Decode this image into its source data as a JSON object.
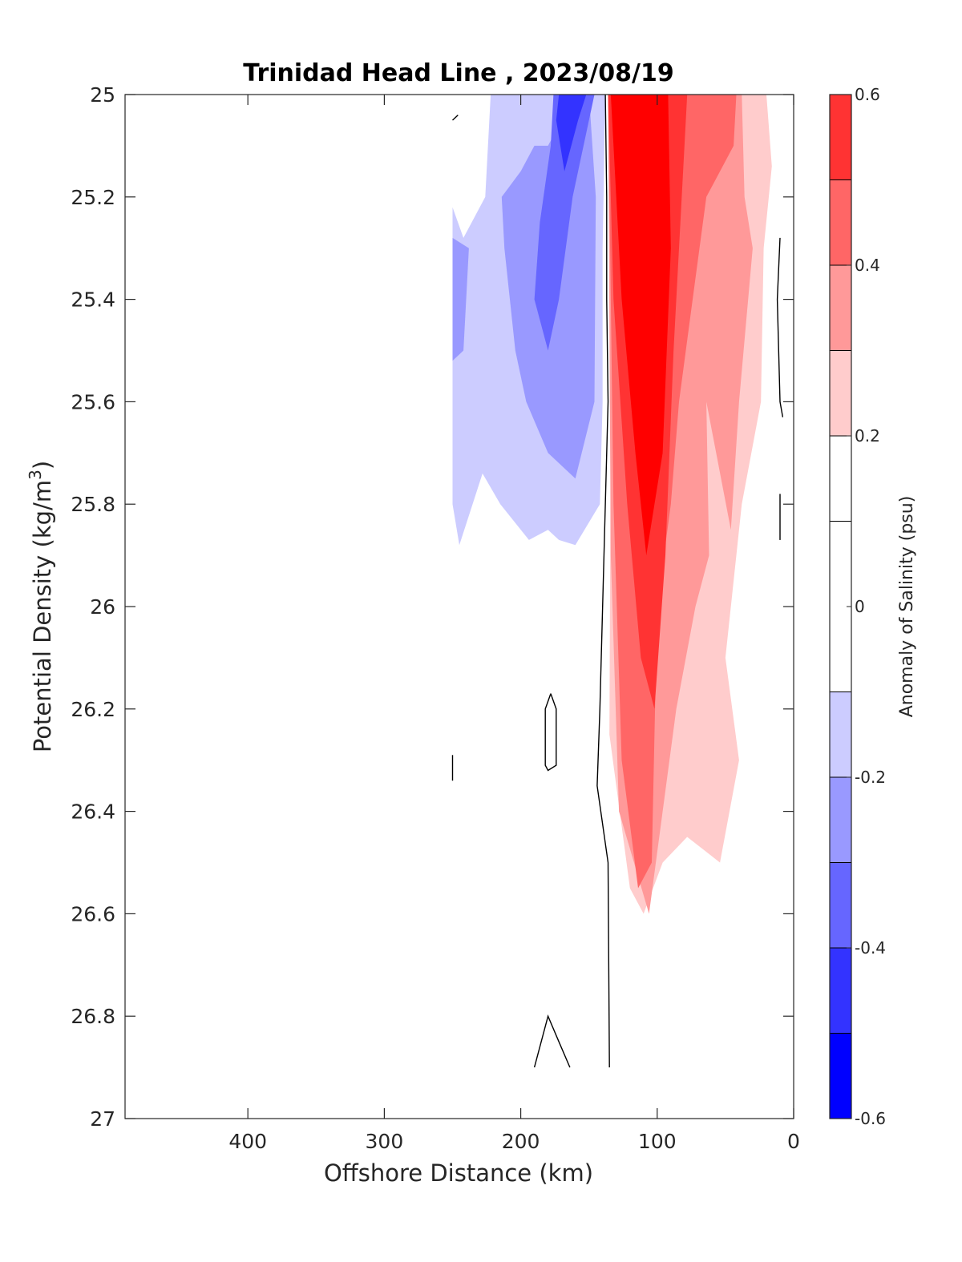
{
  "chart_data": {
    "type": "contour",
    "title": "Trinidad Head Line , 2023/08/19",
    "xlabel": "Offshore Distance (km)",
    "ylabel": "Potential Density (kg/m3)",
    "ylabel_base": "Potential Density (kg/m",
    "ylabel_sup": "3",
    "ylabel_end": ")",
    "xlim": [
      490,
      0
    ],
    "x_reversed": true,
    "ylim": [
      25,
      27
    ],
    "y_reversed": true,
    "x_ticks": [
      400,
      300,
      200,
      100,
      0
    ],
    "x_tick_labels": [
      "400",
      "300",
      "200",
      "100",
      "0"
    ],
    "y_ticks": [
      25,
      25.2,
      25.4,
      25.6,
      25.8,
      26,
      26.2,
      26.4,
      26.6,
      26.8,
      27
    ],
    "y_tick_labels": [
      "25",
      "25.2",
      "25.4",
      "25.6",
      "25.8",
      "26",
      "26.2",
      "26.4",
      "26.6",
      "26.8",
      "27"
    ],
    "colorbar": {
      "label": "Anomaly of Salinity (psu)",
      "range": [
        -0.6,
        0.6
      ],
      "levels": [
        -0.6,
        -0.5,
        -0.4,
        -0.3,
        -0.2,
        -0.1,
        0.1,
        0.2,
        0.3,
        0.4,
        0.5,
        0.6
      ],
      "ticks": [
        -0.6,
        -0.4,
        -0.2,
        0,
        0.2,
        0.4,
        0.6
      ],
      "tick_labels": [
        "-0.6",
        "-0.4",
        "-0.2",
        "0",
        "0.2",
        "0.4",
        "0.6"
      ],
      "colors": [
        "#0000ff",
        "#3333ff",
        "#6666ff",
        "#9999ff",
        "#ccccff",
        "#ffffff",
        "#ffffff",
        "#ffcccc",
        "#ff9999",
        "#ff6666",
        "#ff3333",
        "#ff0000"
      ]
    },
    "filled_regions": [
      {
        "level": -0.1,
        "color": "#ccccff",
        "points": [
          [
            250,
            25.22
          ],
          [
            242,
            25.28
          ],
          [
            226,
            25.2
          ],
          [
            222,
            25.0
          ],
          [
            190,
            25.0
          ],
          [
            150,
            25.0
          ],
          [
            138,
            25.0
          ],
          [
            140,
            25.3
          ],
          [
            140,
            25.6
          ],
          [
            142,
            25.8
          ],
          [
            160,
            25.88
          ],
          [
            172,
            25.87
          ],
          [
            180,
            25.85
          ],
          [
            194,
            25.87
          ],
          [
            215,
            25.8
          ],
          [
            228,
            25.74
          ],
          [
            245,
            25.88
          ],
          [
            250,
            25.8
          ]
        ]
      },
      {
        "level": -0.2,
        "color": "#9999ff",
        "points": [
          [
            250,
            25.28
          ],
          [
            250,
            25.52
          ],
          [
            242,
            25.5
          ],
          [
            238,
            25.3
          ]
        ]
      },
      {
        "level": -0.2,
        "color": "#9999ff",
        "points": [
          [
            190,
            25.1
          ],
          [
            180,
            25.1
          ],
          [
            160,
            25.0
          ],
          [
            150,
            25.0
          ],
          [
            145,
            25.2
          ],
          [
            146,
            25.6
          ],
          [
            160,
            25.75
          ],
          [
            180,
            25.7
          ],
          [
            196,
            25.6
          ],
          [
            204,
            25.5
          ],
          [
            212,
            25.3
          ],
          [
            214,
            25.2
          ],
          [
            200,
            25.15
          ]
        ]
      },
      {
        "level": -0.3,
        "color": "#6666ff",
        "points": [
          [
            176,
            25.0
          ],
          [
            146,
            25.0
          ],
          [
            162,
            25.2
          ],
          [
            172,
            25.4
          ],
          [
            180,
            25.5
          ],
          [
            190,
            25.4
          ],
          [
            186,
            25.25
          ],
          [
            178,
            25.1
          ]
        ]
      },
      {
        "level": -0.4,
        "color": "#3333ff",
        "points": [
          [
            172,
            25.0
          ],
          [
            152,
            25.0
          ],
          [
            158,
            25.05
          ],
          [
            168,
            25.15
          ],
          [
            174,
            25.05
          ]
        ]
      },
      {
        "level": 0.1,
        "color": "#ffcccc",
        "points": [
          [
            135,
            25.0
          ],
          [
            20,
            25.0
          ],
          [
            16,
            25.14
          ],
          [
            22,
            25.3
          ],
          [
            24,
            25.6
          ],
          [
            38,
            25.8
          ],
          [
            50,
            26.1
          ],
          [
            40,
            26.3
          ],
          [
            54,
            26.5
          ],
          [
            78,
            26.45
          ],
          [
            96,
            26.5
          ],
          [
            110,
            26.6
          ],
          [
            120,
            26.55
          ],
          [
            135,
            26.25
          ],
          [
            134,
            25.6
          ]
        ]
      },
      {
        "level": 0.2,
        "color": "#ff9999",
        "points": [
          [
            136,
            25.0
          ],
          [
            38,
            25.0
          ],
          [
            36,
            25.2
          ],
          [
            30,
            25.3
          ],
          [
            40,
            25.6
          ],
          [
            46,
            25.85
          ],
          [
            64,
            25.6
          ],
          [
            62,
            25.9
          ],
          [
            72,
            26.0
          ],
          [
            86,
            26.2
          ],
          [
            106,
            26.6
          ],
          [
            128,
            26.4
          ],
          [
            134,
            25.9
          ]
        ]
      },
      {
        "level": 0.3,
        "color": "#ff6666",
        "points": [
          [
            136,
            25.0
          ],
          [
            42,
            25.0
          ],
          [
            44,
            25.1
          ],
          [
            64,
            25.2
          ],
          [
            74,
            25.4
          ],
          [
            84,
            25.6
          ],
          [
            90,
            25.8
          ],
          [
            100,
            26.0
          ],
          [
            104,
            26.5
          ],
          [
            114,
            26.55
          ],
          [
            126,
            26.3
          ],
          [
            132,
            25.8
          ]
        ]
      },
      {
        "level": 0.4,
        "color": "#ff3333",
        "points": [
          [
            136,
            25.0
          ],
          [
            78,
            25.0
          ],
          [
            84,
            25.3
          ],
          [
            88,
            25.5
          ],
          [
            94,
            25.9
          ],
          [
            102,
            26.2
          ],
          [
            112,
            26.1
          ],
          [
            122,
            25.8
          ],
          [
            132,
            25.4
          ]
        ]
      },
      {
        "level": 0.5,
        "color": "#ff0000",
        "points": [
          [
            134,
            25.0
          ],
          [
            92,
            25.0
          ],
          [
            90,
            25.3
          ],
          [
            96,
            25.7
          ],
          [
            108,
            25.9
          ],
          [
            116,
            25.7
          ],
          [
            126,
            25.4
          ],
          [
            132,
            25.1
          ]
        ]
      }
    ],
    "zero_contours": [
      {
        "points": [
          [
            246,
            25.04
          ],
          [
            250,
            25.05
          ]
        ]
      },
      {
        "points": [
          [
            138,
            25.0
          ],
          [
            137,
            25.2
          ],
          [
            137,
            25.4
          ],
          [
            136,
            25.6
          ],
          [
            138,
            25.8
          ],
          [
            140,
            26.0
          ],
          [
            142,
            26.2
          ],
          [
            144,
            26.35
          ],
          [
            136,
            26.5
          ],
          [
            135,
            26.9
          ]
        ]
      },
      {
        "points": [
          [
            250,
            26.34
          ],
          [
            250,
            26.29
          ]
        ]
      },
      {
        "points": [
          [
            178,
            26.17
          ],
          [
            174,
            26.2
          ],
          [
            174,
            26.31
          ],
          [
            180,
            26.32
          ],
          [
            182,
            26.31
          ],
          [
            182,
            26.2
          ],
          [
            178,
            26.17
          ]
        ]
      },
      {
        "points": [
          [
            190,
            26.9
          ],
          [
            180,
            26.8
          ],
          [
            172,
            26.85
          ],
          [
            164,
            26.9
          ]
        ]
      },
      {
        "points": [
          [
            10,
            25.28
          ],
          [
            12,
            25.4
          ],
          [
            10,
            25.6
          ],
          [
            8,
            25.63
          ]
        ]
      },
      {
        "points": [
          [
            10,
            25.78
          ],
          [
            10,
            25.87
          ]
        ]
      }
    ]
  }
}
